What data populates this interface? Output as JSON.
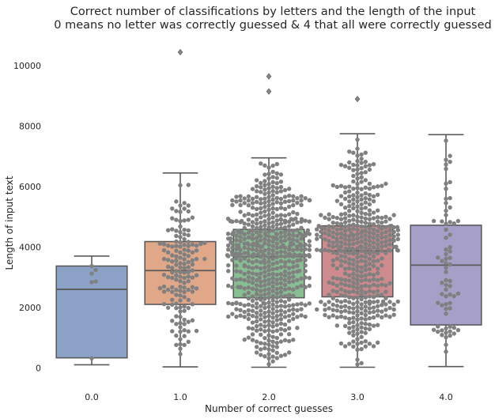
{
  "chart_data": {
    "type": "box",
    "title": [
      "Correct number of classifications by letters and the length of the input",
      "0 means no letter was correctly guessed & 4 that all were correctly guessed"
    ],
    "xlabel": "Number of correct guesses",
    "ylabel": "Length of input text",
    "categories": [
      "0.0",
      "1.0",
      "2.0",
      "3.0",
      "4.0"
    ],
    "ylim": [
      -700,
      11000
    ],
    "yticks": [
      0,
      2000,
      4000,
      6000,
      8000,
      10000
    ],
    "grid": false,
    "colors": [
      "#8ba1c6",
      "#e0a889",
      "#88bf92",
      "#cf8a8e",
      "#a69fc8"
    ],
    "swarm_color": "#808080",
    "boxes": [
      {
        "category": "0.0",
        "q1": 330,
        "median": 2600,
        "q3": 3370,
        "whisker_low": 100,
        "whisker_high": 3700,
        "outliers": [],
        "n": 6
      },
      {
        "category": "1.0",
        "q1": 2100,
        "median": 3220,
        "q3": 4180,
        "whisker_low": 30,
        "whisker_high": 6450,
        "outliers": [
          10450
        ],
        "n": 150
      },
      {
        "category": "2.0",
        "q1": 2320,
        "median": 3680,
        "q3": 4580,
        "whisker_low": 20,
        "whisker_high": 6950,
        "outliers": [
          9150,
          9650
        ],
        "n": 600
      },
      {
        "category": "3.0",
        "q1": 2350,
        "median": 3870,
        "q3": 4700,
        "whisker_low": 20,
        "whisker_high": 7750,
        "outliers": [
          8900
        ],
        "n": 480
      },
      {
        "category": "4.0",
        "q1": 1420,
        "median": 3400,
        "q3": 4720,
        "whisker_low": 40,
        "whisker_high": 7720,
        "outliers": [],
        "n": 70
      }
    ]
  }
}
